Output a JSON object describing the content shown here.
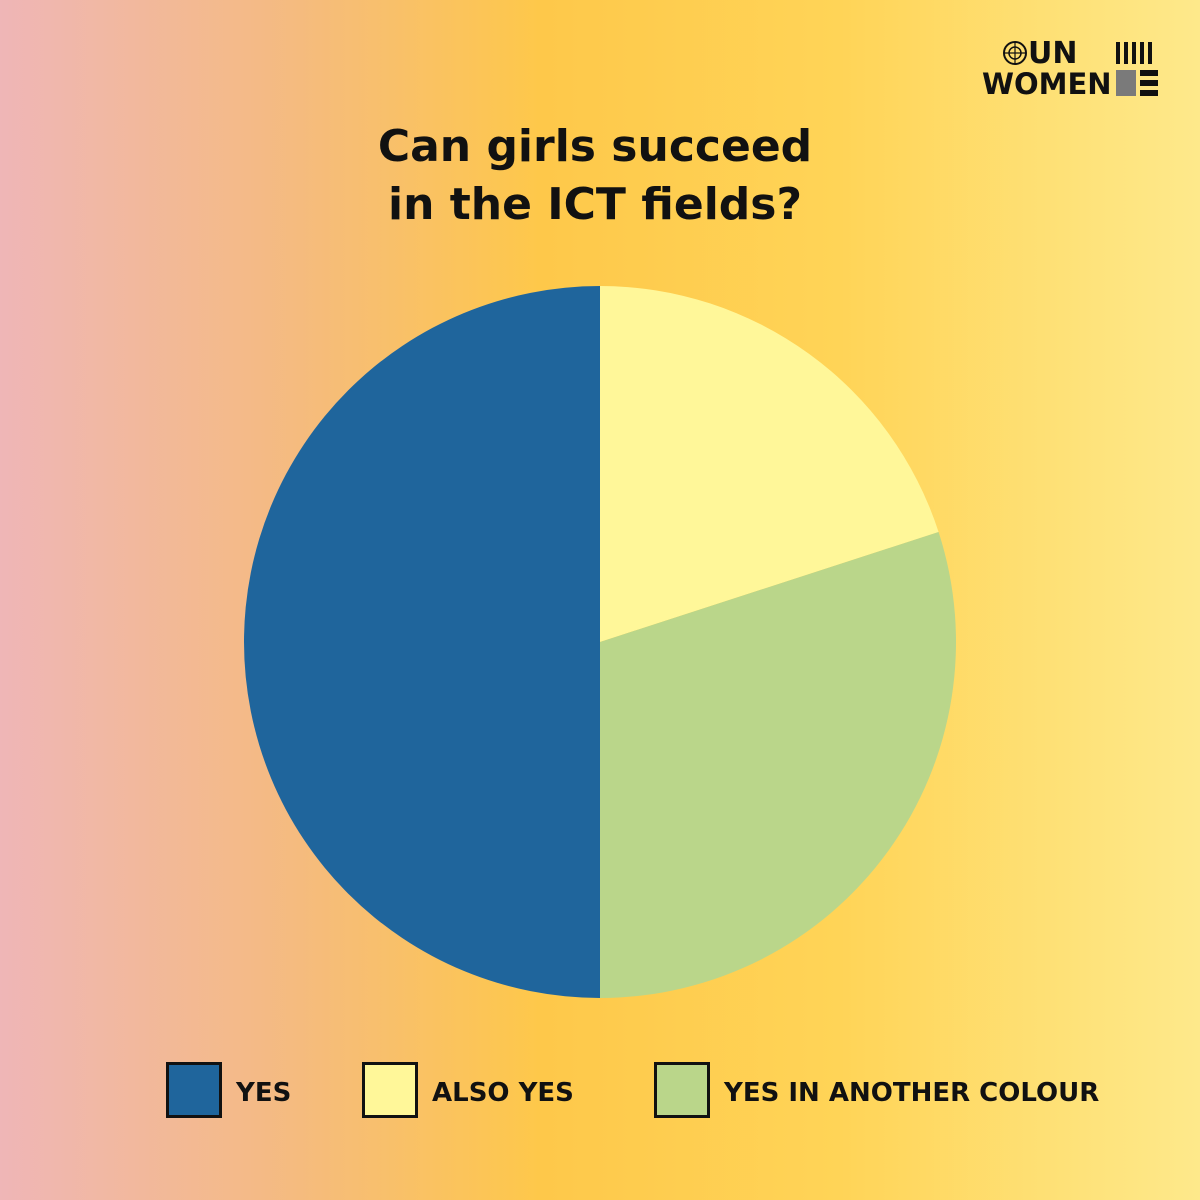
{
  "logo": {
    "line1": "UN",
    "line2": "WOMEN"
  },
  "chart_data": {
    "type": "pie",
    "title_lines": [
      "Can girls succeed",
      "in the ICT fields?"
    ],
    "slices": [
      {
        "label": "YES",
        "value": 50,
        "color": "#1f659c"
      },
      {
        "label": "ALSO YES",
        "value": 20,
        "color": "#fff799"
      },
      {
        "label": "YES IN ANOTHER COLOUR",
        "value": 30,
        "color": "#bad68a"
      }
    ],
    "legend_position": "bottom"
  }
}
